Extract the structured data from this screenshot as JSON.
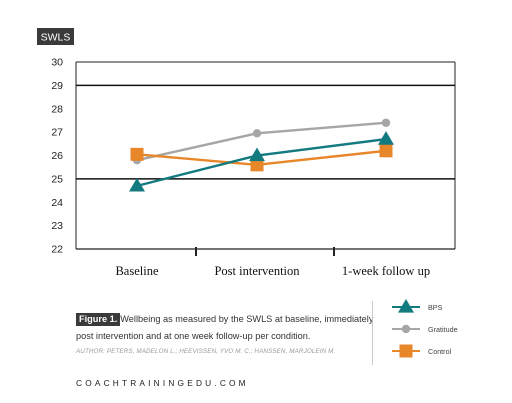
{
  "chart_data": {
    "type": "line",
    "ylabel": "SWLS",
    "xlabel": "",
    "title": "",
    "categories": [
      "Baseline",
      "Post intervention",
      "1-week follow up"
    ],
    "ylim": [
      22,
      30
    ],
    "yticks": [
      22,
      23,
      24,
      25,
      26,
      27,
      28,
      29,
      30
    ],
    "grid": "horizontal lines at 25 and 29 (dark)",
    "legend_position": "bottom-right",
    "series": [
      {
        "name": "BPS",
        "values": [
          24.7,
          26.0,
          26.7
        ],
        "color": "#137a80",
        "marker": "triangle"
      },
      {
        "name": "Gratitude",
        "values": [
          25.8,
          26.95,
          27.4
        ],
        "color": "#a6a6a6",
        "marker": "circle"
      },
      {
        "name": "Control",
        "values": [
          26.05,
          25.6,
          26.2
        ],
        "color": "#e8862a",
        "marker": "square"
      }
    ]
  },
  "caption": {
    "figure_label": "Figure 1.",
    "text": "Wellbeing as measured by the SWLS at baseline, immediately post intervention and at one week follow-up per condition.",
    "author": "AUTHOR: PETERS, MADELON L.; HEEVISSEN, YVO M. C.; HANSSEN, MARJOLEIN M."
  },
  "footer": {
    "site": "COACHTRAININGEDU.COM"
  }
}
